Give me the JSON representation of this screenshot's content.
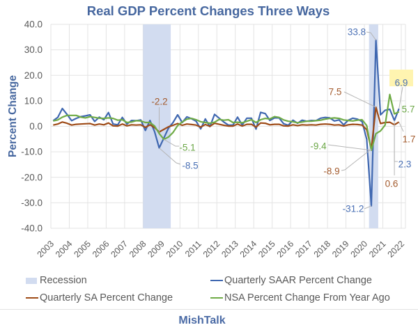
{
  "chart_data": {
    "type": "line",
    "title": "Real GDP Percent Changes Three Ways",
    "xlabel": "",
    "ylabel": "Percent Change",
    "ylim": [
      -40,
      40
    ],
    "yticks": [
      40,
      30,
      20,
      10,
      0,
      -10,
      -20,
      -30,
      -40
    ],
    "ytick_labels": [
      "40.0",
      "30.0",
      "20.0",
      "10.0",
      "0.0",
      "-10.0",
      "-20.0",
      "-30.0",
      "-40.0"
    ],
    "xticks": [
      "2003",
      "2004",
      "2005",
      "2006",
      "2007",
      "2008",
      "2009",
      "2010",
      "2011",
      "2012",
      "2013",
      "2014",
      "2015",
      "2016",
      "2017",
      "2018",
      "2019",
      "2020",
      "2021",
      "2022"
    ],
    "grid": true,
    "x": [
      "2003Q1",
      "2003Q2",
      "2003Q3",
      "2003Q4",
      "2004Q1",
      "2004Q2",
      "2004Q3",
      "2004Q4",
      "2005Q1",
      "2005Q2",
      "2005Q3",
      "2005Q4",
      "2006Q1",
      "2006Q2",
      "2006Q3",
      "2006Q4",
      "2007Q1",
      "2007Q2",
      "2007Q3",
      "2007Q4",
      "2008Q1",
      "2008Q2",
      "2008Q3",
      "2008Q4",
      "2009Q1",
      "2009Q2",
      "2009Q3",
      "2009Q4",
      "2010Q1",
      "2010Q2",
      "2010Q3",
      "2010Q4",
      "2011Q1",
      "2011Q2",
      "2011Q3",
      "2011Q4",
      "2012Q1",
      "2012Q2",
      "2012Q3",
      "2012Q4",
      "2013Q1",
      "2013Q2",
      "2013Q3",
      "2013Q4",
      "2014Q1",
      "2014Q2",
      "2014Q3",
      "2014Q4",
      "2015Q1",
      "2015Q2",
      "2015Q3",
      "2015Q4",
      "2016Q1",
      "2016Q2",
      "2016Q3",
      "2016Q4",
      "2017Q1",
      "2017Q2",
      "2017Q3",
      "2017Q4",
      "2018Q1",
      "2018Q2",
      "2018Q3",
      "2018Q4",
      "2019Q1",
      "2019Q2",
      "2019Q3",
      "2019Q4",
      "2020Q1",
      "2020Q2",
      "2020Q3",
      "2020Q4",
      "2021Q1",
      "2021Q2",
      "2021Q3",
      "2021Q4"
    ],
    "series": [
      {
        "name": "Quarterly SAAR Percent Change",
        "color": "#3f67b0",
        "label_color": "#4a70b5",
        "values": [
          2.2,
          3.5,
          7.0,
          4.7,
          2.2,
          3.1,
          3.8,
          4.1,
          4.5,
          1.9,
          3.6,
          2.6,
          5.4,
          0.9,
          0.6,
          3.5,
          0.9,
          2.3,
          2.2,
          2.5,
          -1.6,
          2.3,
          -2.1,
          -8.5,
          -4.6,
          -0.7,
          1.5,
          4.5,
          1.5,
          3.7,
          3.0,
          2.0,
          -1.0,
          2.9,
          -0.1,
          4.7,
          3.2,
          1.7,
          0.5,
          0.5,
          3.6,
          0.5,
          3.2,
          3.2,
          -1.1,
          5.5,
          5.0,
          2.3,
          3.3,
          3.3,
          1.0,
          0.4,
          2.4,
          1.2,
          2.4,
          2.0,
          2.3,
          2.2,
          3.2,
          3.5,
          3.3,
          2.1,
          2.5,
          0.6,
          2.4,
          3.2,
          2.8,
          1.9,
          -5.1,
          -31.2,
          33.8,
          4.5,
          6.3,
          6.7,
          2.3,
          6.9
        ]
      },
      {
        "name": "Quarterly SA Percent Change",
        "color": "#9e4b17",
        "label_color": "#a35a2c",
        "values": [
          0.5,
          0.9,
          1.7,
          1.2,
          0.5,
          0.8,
          0.9,
          1.0,
          1.1,
          0.5,
          0.9,
          0.6,
          1.3,
          0.2,
          0.1,
          0.9,
          0.2,
          0.6,
          0.5,
          0.6,
          -0.4,
          0.6,
          -0.5,
          -2.2,
          -1.2,
          -0.2,
          0.4,
          1.1,
          0.4,
          0.9,
          0.7,
          0.5,
          -0.3,
          0.7,
          0.0,
          1.2,
          0.8,
          0.4,
          0.1,
          0.1,
          0.9,
          0.1,
          0.8,
          0.8,
          -0.3,
          1.3,
          1.2,
          0.6,
          0.8,
          0.8,
          0.2,
          0.1,
          0.6,
          0.3,
          0.6,
          0.5,
          0.6,
          0.5,
          0.8,
          0.9,
          0.8,
          0.5,
          0.6,
          0.1,
          0.6,
          0.8,
          0.7,
          0.5,
          -1.3,
          -8.9,
          7.5,
          1.1,
          1.5,
          1.6,
          0.6,
          1.7
        ]
      },
      {
        "name": "NSA Percent Change From Year Ago",
        "color": "#6fab46",
        "label_color": "#6aa645",
        "values": [
          2.1,
          2.5,
          3.6,
          4.3,
          4.3,
          4.3,
          3.6,
          3.3,
          3.8,
          3.5,
          3.2,
          3.1,
          3.3,
          3.1,
          2.4,
          2.6,
          1.5,
          1.7,
          2.2,
          2.1,
          1.5,
          1.5,
          0.1,
          -2.8,
          -5.1,
          -4.2,
          -2.4,
          0.3,
          1.7,
          2.8,
          3.1,
          2.6,
          1.8,
          1.5,
          1.2,
          1.6,
          2.7,
          2.4,
          2.6,
          1.5,
          1.6,
          1.4,
          2.0,
          2.6,
          1.5,
          2.6,
          3.1,
          2.9,
          3.8,
          3.5,
          2.5,
          2.0,
          1.8,
          1.4,
          1.7,
          2.0,
          2.0,
          2.2,
          2.4,
          2.8,
          3.1,
          3.3,
          3.1,
          2.5,
          2.3,
          2.1,
          2.4,
          2.6,
          0.3,
          -9.4,
          -2.9,
          -1.8,
          0.5,
          12.5,
          4.9,
          5.7
        ]
      }
    ],
    "recession_color": "#d2dcf0",
    "recessions": [
      {
        "start": 2008.0,
        "end": 2009.5
      },
      {
        "start": 2020.25,
        "end": 2020.75
      }
    ],
    "highlight_color": "#fff4b0",
    "annotations": [
      {
        "text": "-2.2",
        "series": 1,
        "x": "2008Q4"
      },
      {
        "text": "-5.1",
        "series": 2,
        "x": "2009Q1"
      },
      {
        "text": "-8.5",
        "series": 0,
        "x": "2008Q4"
      },
      {
        "text": "33.8",
        "series": 0,
        "x": "2020Q3"
      },
      {
        "text": "7.5",
        "series": 1,
        "x": "2020Q3"
      },
      {
        "text": "-9.4",
        "series": 2,
        "x": "2020Q2"
      },
      {
        "text": "-8.9",
        "series": 1,
        "x": "2020Q2"
      },
      {
        "text": "-31.2",
        "series": 0,
        "x": "2020Q2"
      },
      {
        "text": "6.9",
        "series": 0,
        "x": "2021Q4",
        "highlight": true
      },
      {
        "text": "5.7",
        "series": 2,
        "x": "2021Q4"
      },
      {
        "text": "1.7",
        "series": 1,
        "x": "2021Q4"
      },
      {
        "text": "2.3",
        "series": 0,
        "x": "2021Q3"
      },
      {
        "text": "0.6",
        "series": 1,
        "x": "2021Q3"
      }
    ],
    "legend": {
      "position": "bottom",
      "items": [
        {
          "label": "Recession",
          "kind": "box",
          "color": "#d2dcf0"
        },
        {
          "label": "Quarterly SAAR Percent Change",
          "kind": "line",
          "color": "#3f67b0"
        },
        {
          "label": "Quarterly SA Percent Change",
          "kind": "line",
          "color": "#9e4b17"
        },
        {
          "label": "NSA Percent Change From Year Ago",
          "kind": "line",
          "color": "#6fab46"
        }
      ]
    }
  },
  "footer": {
    "brand": "MishTalk"
  }
}
